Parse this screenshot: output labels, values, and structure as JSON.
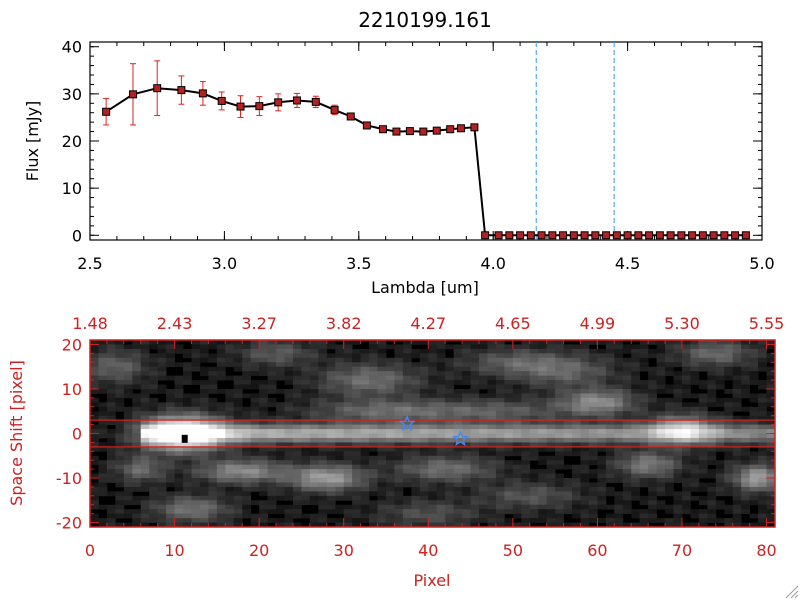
{
  "chart_data": [
    {
      "type": "line",
      "title": "2210199.161",
      "xlabel": "Lambda [um]",
      "ylabel": "Flux [mJy]",
      "xlim": [
        2.5,
        5.0
      ],
      "ylim": [
        -1,
        41
      ],
      "x_tick_labels": [
        "2.5",
        "3.0",
        "3.5",
        "4.0",
        "4.5",
        "5.0"
      ],
      "y_tick_labels": [
        "0",
        "10",
        "20",
        "30",
        "40"
      ],
      "grid": false,
      "line_color": "#000000",
      "marker_color": "#b22222",
      "error_color": "#dd2222",
      "vline_color": "#3399ee",
      "vlines": [
        4.16,
        4.45
      ],
      "series": [
        {
          "x": [
            2.56,
            2.66,
            2.75,
            2.84,
            2.92,
            2.99,
            3.06,
            3.13,
            3.2,
            3.27,
            3.34,
            3.41,
            3.47,
            3.53,
            3.59,
            3.64,
            3.69,
            3.74,
            3.79,
            3.84,
            3.88,
            3.93,
            3.97,
            4.02,
            4.06,
            4.1,
            4.14,
            4.18,
            4.22,
            4.26,
            4.3,
            4.34,
            4.38,
            4.42,
            4.46,
            4.5,
            4.54,
            4.58,
            4.62,
            4.66,
            4.7,
            4.74,
            4.78,
            4.82,
            4.86,
            4.9,
            4.94
          ],
          "y": [
            26.2,
            29.9,
            31.2,
            30.8,
            30.1,
            28.5,
            27.3,
            27.4,
            28.2,
            28.6,
            28.3,
            26.6,
            25.2,
            23.3,
            22.5,
            22.0,
            22.1,
            22.0,
            22.2,
            22.5,
            22.7,
            22.9,
            0,
            0,
            0,
            0,
            0,
            0,
            0,
            0,
            0,
            0,
            0,
            0,
            0,
            0,
            0,
            0,
            0,
            0,
            0,
            0,
            0,
            0,
            0,
            0,
            0
          ],
          "yerr": [
            2.8,
            6.5,
            5.8,
            3.0,
            2.5,
            1.9,
            2.3,
            2.0,
            1.8,
            1.5,
            1.2,
            1.0,
            0.6,
            0.5,
            0.4,
            0.4,
            0.4,
            0.4,
            0.4,
            0.4,
            0.5,
            0.5,
            0,
            0,
            0,
            0,
            0,
            0,
            0,
            0,
            0,
            0,
            0,
            0,
            0,
            0,
            0,
            0,
            0,
            0,
            0,
            0,
            0,
            0,
            0,
            0,
            0
          ]
        }
      ]
    },
    {
      "type": "heatmap",
      "xlabel": "Pixel",
      "ylabel": "Space Shift [pixel]",
      "xlim": [
        0,
        81
      ],
      "ylim": [
        -21,
        21
      ],
      "x_tick_labels": [
        "0",
        "10",
        "20",
        "30",
        "40",
        "50",
        "60",
        "70",
        "80"
      ],
      "y_tick_labels": [
        "20",
        "10",
        "0",
        "-10",
        "-20"
      ],
      "top_tick_values": [
        0,
        10,
        20,
        30,
        40,
        50,
        60,
        70,
        80
      ],
      "top_tick_labels": [
        "1.48",
        "2.43",
        "3.27",
        "3.82",
        "4.27",
        "4.65",
        "4.99",
        "5.30",
        "5.55"
      ],
      "axis_color": "#cc2222",
      "slit_lines_y": [
        3,
        -3
      ],
      "trace": {
        "y": 0,
        "x_from": 6,
        "x_to": 81
      },
      "bright_blobs": [
        {
          "x": 11,
          "y": 0,
          "amp": 1.0,
          "sx": 3.2,
          "sy": 2.6
        },
        {
          "x": 70,
          "y": 0.8,
          "amp": 0.55,
          "sx": 2.6,
          "sy": 2.2
        },
        {
          "x": 28,
          "y": -10,
          "amp": 0.5,
          "sx": 3.0,
          "sy": 2.0
        },
        {
          "x": 18,
          "y": -8.5,
          "amp": 0.42,
          "sx": 3.5,
          "sy": 1.8
        },
        {
          "x": 60,
          "y": 7,
          "amp": 0.42,
          "sx": 3.0,
          "sy": 2.0
        },
        {
          "x": 79,
          "y": -10,
          "amp": 0.5,
          "sx": 2.0,
          "sy": 2.0
        },
        {
          "x": 66,
          "y": -7,
          "amp": 0.35,
          "sx": 2.5,
          "sy": 2.0
        },
        {
          "x": 42,
          "y": -8,
          "amp": 0.3,
          "sx": 4.0,
          "sy": 2.0
        },
        {
          "x": 35,
          "y": 5,
          "amp": 0.28,
          "sx": 6.0,
          "sy": 1.8
        },
        {
          "x": 48,
          "y": 5,
          "amp": 0.22,
          "sx": 6.0,
          "sy": 1.8
        },
        {
          "x": 33,
          "y": 12,
          "amp": 0.3,
          "sx": 4.0,
          "sy": 2.5
        },
        {
          "x": 56,
          "y": 14,
          "amp": 0.25,
          "sx": 4.0,
          "sy": 2.5
        },
        {
          "x": 22,
          "y": 18,
          "amp": 0.22,
          "sx": 3.0,
          "sy": 2.0
        },
        {
          "x": 50,
          "y": 16,
          "amp": 0.22,
          "sx": 4.0,
          "sy": 2.0
        },
        {
          "x": 12,
          "y": -17,
          "amp": 0.32,
          "sx": 3.0,
          "sy": 2.0
        },
        {
          "x": 6,
          "y": -8,
          "amp": 0.28,
          "sx": 2.0,
          "sy": 2.0
        },
        {
          "x": 74,
          "y": 18,
          "amp": 0.28,
          "sx": 3.0,
          "sy": 2.0
        },
        {
          "x": 3,
          "y": 15,
          "amp": 0.25,
          "sx": 2.5,
          "sy": 2.5
        },
        {
          "x": 52,
          "y": -14,
          "amp": 0.2,
          "sx": 4.0,
          "sy": 2.0
        },
        {
          "x": 40,
          "y": -18,
          "amp": 0.18,
          "sx": 4.0,
          "sy": 2.0
        }
      ],
      "markers": [
        {
          "shape": "square",
          "x": 11.2,
          "y": -1.2,
          "color": "#000000"
        },
        {
          "shape": "star",
          "x": 37.5,
          "y": 2.2,
          "color": "#4488ee"
        },
        {
          "shape": "star",
          "x": 43.8,
          "y": -1.2,
          "color": "#4488ee"
        }
      ]
    }
  ]
}
